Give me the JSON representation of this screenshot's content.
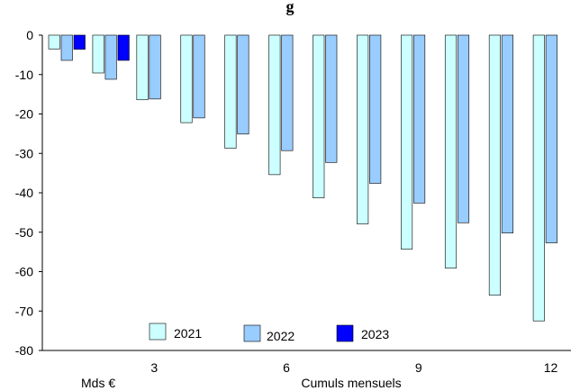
{
  "chart_data": {
    "type": "bar",
    "title_fragment": "g",
    "unit_label": "Mds €",
    "xlabel": "Cumuls mensuels",
    "ylim": [
      -80,
      0
    ],
    "yticks": [
      0,
      -10,
      -20,
      -30,
      -40,
      -50,
      -60,
      -70,
      -80
    ],
    "categories": [
      1,
      2,
      3,
      4,
      5,
      6,
      7,
      8,
      9,
      10,
      11,
      12
    ],
    "xtick_labels": [
      "",
      "",
      "3",
      "",
      "",
      "6",
      "",
      "",
      "9",
      "",
      "",
      "12"
    ],
    "grid": false,
    "legend_position": "bottom-left",
    "series": [
      {
        "name": "2021",
        "color": "#ccffff",
        "values": [
          -3.5,
          -9.6,
          -16.4,
          -22.2,
          -28.7,
          -35.4,
          -41.3,
          -47.9,
          -54.3,
          -59.1,
          -66.0,
          -72.5
        ]
      },
      {
        "name": "2022",
        "color": "#99ccff",
        "values": [
          -6.4,
          -11.2,
          -16.2,
          -21.0,
          -25.1,
          -29.3,
          -32.3,
          -37.6,
          -42.6,
          -47.6,
          -50.2,
          -52.7
        ]
      },
      {
        "name": "2023",
        "color": "#0000ff",
        "values": [
          -3.6,
          -6.4,
          null,
          null,
          null,
          null,
          null,
          null,
          null,
          null,
          null,
          null
        ]
      }
    ]
  }
}
